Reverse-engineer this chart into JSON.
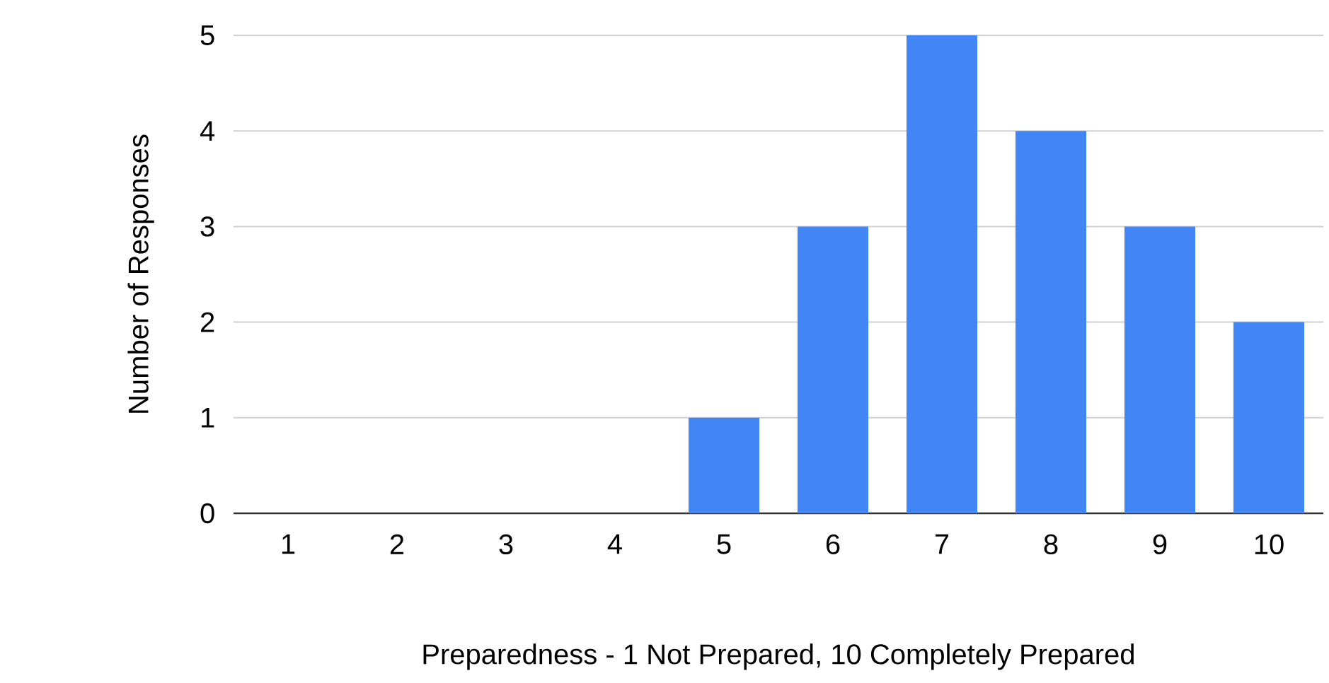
{
  "chart_data": {
    "type": "bar",
    "xlabel": "Preparedness - 1 Not Prepared, 10 Completely Prepared",
    "ylabel": "Number of Responses",
    "categories": [
      "1",
      "2",
      "3",
      "4",
      "5",
      "6",
      "7",
      "8",
      "9",
      "10"
    ],
    "values": [
      0,
      0,
      0,
      0,
      1,
      3,
      5,
      4,
      3,
      2
    ],
    "color": "#4285f4",
    "ylim": [
      0,
      5
    ],
    "yticks": [
      0,
      1,
      2,
      3,
      4,
      5
    ],
    "grid": "y"
  }
}
